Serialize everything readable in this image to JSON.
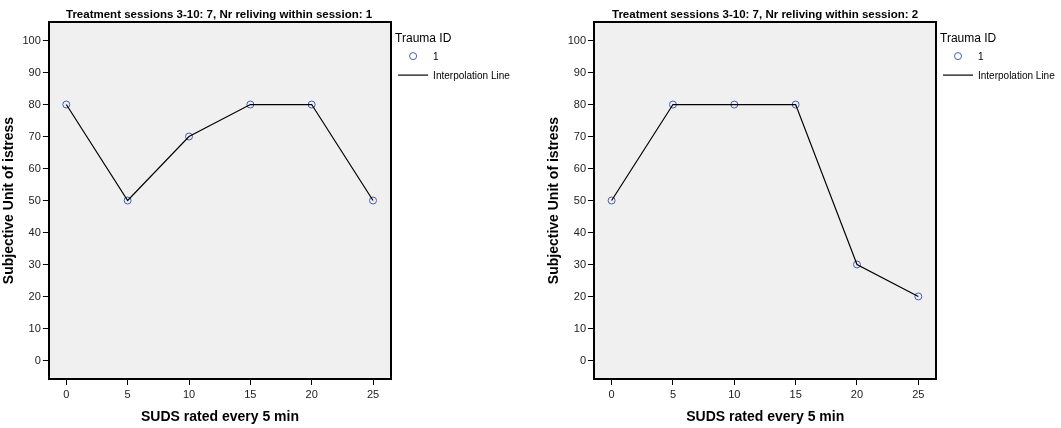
{
  "chart_data": [
    {
      "type": "scatter",
      "title": "Treatment sessions 3-10: 7, Nr reliving within session: 1",
      "xlabel": "SUDS rated every 5 min",
      "ylabel": "Subjective Unit of istress",
      "legend_title": "Trauma ID",
      "x": [
        0,
        5,
        10,
        15,
        20,
        25
      ],
      "series": [
        {
          "name": "1",
          "color": "#4a5cb8",
          "marker": "circle",
          "values": [
            80,
            50,
            70,
            80,
            80,
            50
          ]
        },
        {
          "name": "Interpolation Line",
          "type": "line",
          "color": "#000000",
          "marker": "none",
          "line_style": "solid",
          "values": [
            80,
            50,
            70,
            80,
            80,
            50
          ]
        }
      ],
      "xlim": [
        -1.35,
        26.4
      ],
      "xticks": [
        0,
        5,
        10,
        15,
        20,
        25
      ],
      "ylim": [
        -5.5,
        105.5
      ],
      "yticks": [
        0,
        10,
        20,
        30,
        40,
        50,
        60,
        70,
        80,
        90,
        100
      ],
      "grid": false,
      "legend": "top right"
    },
    {
      "type": "scatter",
      "title": "Treatment sessions 3-10: 7, Nr reliving within session: 2",
      "xlabel": "SUDS rated every 5 min",
      "ylabel": "Subjective Unit of istress",
      "legend_title": "Trauma ID",
      "x": [
        0,
        5,
        10,
        15,
        20,
        25
      ],
      "series": [
        {
          "name": "1",
          "color": "#4a5cb8",
          "marker": "circle",
          "values": [
            50,
            80,
            80,
            80,
            30,
            20
          ]
        },
        {
          "name": "Interpolation Line",
          "type": "line",
          "color": "#000000",
          "marker": "none",
          "line_style": "solid",
          "values": [
            50,
            80,
            80,
            80,
            30,
            20
          ]
        }
      ],
      "xlim": [
        -1.35,
        26.4
      ],
      "xticks": [
        0,
        5,
        10,
        15,
        20,
        25
      ],
      "ylim": [
        -5.5,
        105.5
      ],
      "yticks": [
        0,
        10,
        20,
        30,
        40,
        50,
        60,
        70,
        80,
        90,
        100
      ],
      "grid": false,
      "legend": "top right"
    }
  ]
}
